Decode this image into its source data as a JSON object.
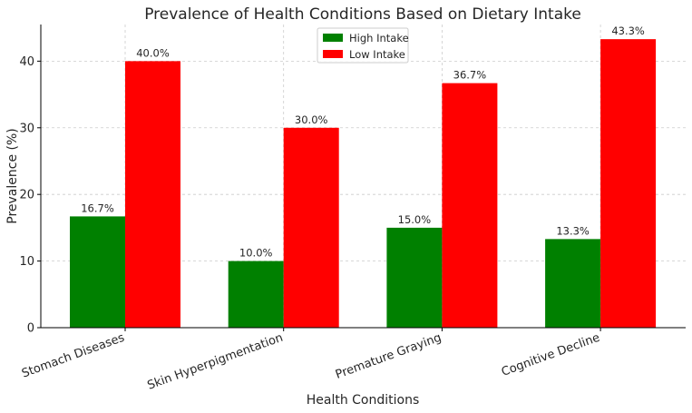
{
  "chart_data": {
    "type": "bar",
    "title": "Prevalence of Health Conditions Based on Dietary Intake",
    "xlabel": "Health Conditions",
    "ylabel": "Prevalence (%)",
    "categories": [
      "Stomach Diseases",
      "Skin Hyperpigmentation",
      "Premature Graying",
      "Cognitive Decline"
    ],
    "series": [
      {
        "name": "High Intake",
        "color": "#008000",
        "values": [
          16.7,
          10.0,
          15.0,
          13.3
        ],
        "labels": [
          "16.7%",
          "10.0%",
          "15.0%",
          "13.3%"
        ]
      },
      {
        "name": "Low Intake",
        "color": "#ff0000",
        "values": [
          40.0,
          30.0,
          36.7,
          43.3
        ],
        "labels": [
          "40.0%",
          "30.0%",
          "36.7%",
          "43.3%"
        ]
      }
    ],
    "ylim": [
      0,
      45.5
    ],
    "yticks": [
      0,
      10,
      20,
      30,
      40
    ],
    "ytick_labels": [
      "0",
      "10",
      "20",
      "30",
      "40"
    ],
    "grid": true,
    "legend": "top-center"
  }
}
